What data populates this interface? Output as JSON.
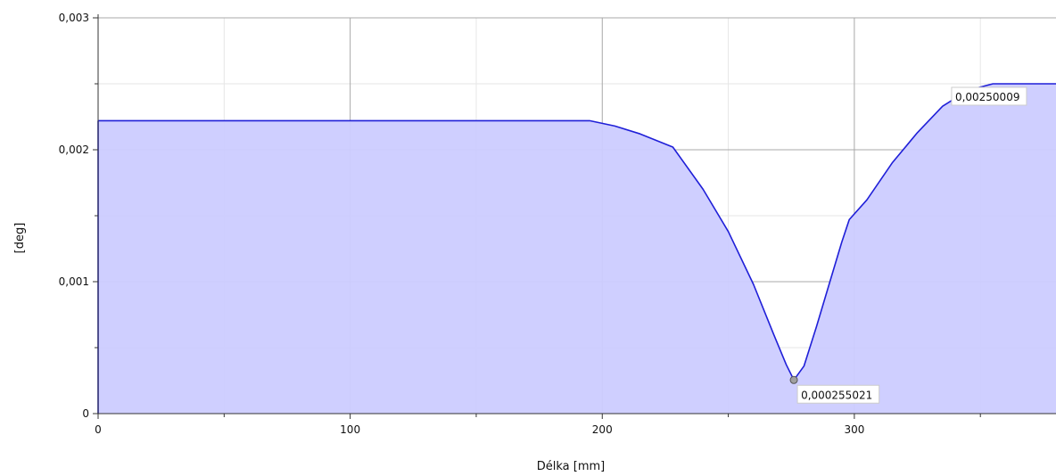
{
  "chart_data": {
    "type": "area",
    "xlabel": "Délka [mm]",
    "ylabel": "[deg]",
    "xlim": [
      0,
      380
    ],
    "ylim": [
      0,
      0.003
    ],
    "grid": true,
    "x_ticks": [
      {
        "value": 0,
        "label": "0"
      },
      {
        "value": 100,
        "label": "100"
      },
      {
        "value": 200,
        "label": "200"
      },
      {
        "value": 300,
        "label": "300"
      }
    ],
    "y_ticks": [
      {
        "value": 0,
        "label": "0"
      },
      {
        "value": 0.001,
        "label": "0,001"
      },
      {
        "value": 0.002,
        "label": "0,002"
      },
      {
        "value": 0.003,
        "label": "0,003"
      }
    ],
    "series": [
      {
        "color": "#1f1fd8",
        "fill": "#ccccff",
        "x": [
          0,
          50,
          100,
          150,
          195,
          205,
          215,
          228,
          240,
          250,
          260,
          268,
          273,
          276,
          280,
          285,
          290,
          295,
          298,
          305,
          315,
          325,
          335,
          345,
          355,
          365,
          380
        ],
        "y": [
          0.00222,
          0.00222,
          0.00222,
          0.00222,
          0.00222,
          0.00218,
          0.00212,
          0.00202,
          0.0017,
          0.00138,
          0.00098,
          0.0006,
          0.00037,
          0.000255021,
          0.00036,
          0.00066,
          0.00098,
          0.0013,
          0.00147,
          0.00162,
          0.0019,
          0.00213,
          0.00233,
          0.00245,
          0.00250009,
          0.00250009,
          0.00250009
        ]
      }
    ],
    "annotations": [
      {
        "x": 276,
        "y": 0.000255021,
        "label": "0,000255021",
        "marker": true
      },
      {
        "x": 340,
        "y": 0.00250009,
        "label": "0,00250009",
        "marker": false
      }
    ]
  }
}
